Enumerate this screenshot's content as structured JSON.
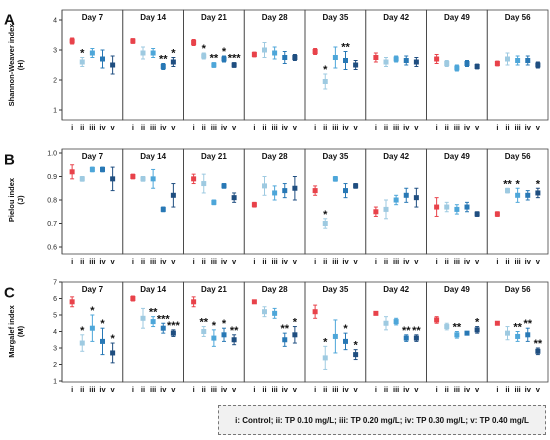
{
  "figure": {
    "legend_text": "i: Control; ii: TP 0.10 mg/L; iii: TP 0.20 mg/L; iv: TP 0.30 mg/L; v: TP 0.40 mg/L",
    "x_categories": [
      "i",
      "ii",
      "iii",
      "iv",
      "v"
    ],
    "days": [
      "Day 7",
      "Day 14",
      "Day 21",
      "Day 28",
      "Day 35",
      "Day 42",
      "Day 49",
      "Day 56"
    ],
    "colors": [
      "#e8424a",
      "#9ecae1",
      "#4da6d9",
      "#2878b5",
      "#1f4e80"
    ]
  },
  "chart_data": [
    {
      "type": "scatter",
      "panel": "A",
      "ylabel": "Shannon-Weaver index (H)",
      "ylim": [
        1,
        4
      ],
      "yticks": [
        1,
        2,
        3,
        4
      ],
      "days": [
        {
          "values": [
            3.3,
            2.6,
            2.9,
            2.7,
            2.5
          ],
          "errors": [
            0.1,
            0.15,
            0.15,
            0.3,
            0.3
          ],
          "stars": [
            "",
            "*",
            "",
            "",
            ""
          ]
        },
        {
          "values": [
            3.3,
            2.9,
            2.9,
            2.45,
            2.6
          ],
          "errors": [
            0.08,
            0.2,
            0.15,
            0.1,
            0.15
          ],
          "stars": [
            "",
            "",
            "",
            "**",
            "*"
          ]
        },
        {
          "values": [
            3.25,
            2.8,
            2.5,
            2.7,
            2.5
          ],
          "errors": [
            0.1,
            0.1,
            0.08,
            0.1,
            0.08
          ],
          "stars": [
            "",
            "*",
            "**",
            "*",
            "***"
          ]
        },
        {
          "values": [
            2.85,
            3.0,
            2.9,
            2.75,
            2.75
          ],
          "errors": [
            0.08,
            0.25,
            0.2,
            0.2,
            0.1
          ],
          "stars": [
            "",
            "",
            "",
            "",
            ""
          ]
        },
        {
          "values": [
            2.95,
            1.95,
            2.75,
            2.65,
            2.5
          ],
          "errors": [
            0.1,
            0.25,
            0.35,
            0.3,
            0.15
          ],
          "stars": [
            "",
            "*",
            "",
            "**",
            ""
          ]
        },
        {
          "values": [
            2.75,
            2.6,
            2.7,
            2.65,
            2.6
          ],
          "errors": [
            0.15,
            0.15,
            0.1,
            0.15,
            0.15
          ],
          "stars": [
            "",
            "",
            "",
            "",
            ""
          ]
        },
        {
          "values": [
            2.7,
            2.55,
            2.4,
            2.55,
            2.45
          ],
          "errors": [
            0.15,
            0.1,
            0.1,
            0.1,
            0.08
          ],
          "stars": [
            "",
            "",
            "",
            "",
            ""
          ]
        },
        {
          "values": [
            2.55,
            2.7,
            2.65,
            2.65,
            2.5
          ],
          "errors": [
            0.08,
            0.2,
            0.15,
            0.15,
            0.1
          ],
          "stars": [
            "",
            "",
            "",
            "",
            ""
          ]
        }
      ]
    },
    {
      "type": "scatter",
      "panel": "B",
      "ylabel": "Pielou index (J)",
      "ylim": [
        0.6,
        1.0
      ],
      "yticks": [
        0.6,
        0.7,
        0.8,
        0.9,
        1.0
      ],
      "days": [
        {
          "values": [
            0.92,
            0.89,
            0.93,
            0.93,
            0.89
          ],
          "errors": [
            0.03,
            0.01,
            0.01,
            0.01,
            0.05
          ],
          "stars": [
            "",
            "",
            "",
            "",
            ""
          ]
        },
        {
          "values": [
            0.9,
            0.89,
            0.89,
            0.76,
            0.82
          ],
          "errors": [
            0.01,
            0.01,
            0.04,
            0.01,
            0.05
          ],
          "stars": [
            "",
            "",
            "",
            "",
            ""
          ]
        },
        {
          "values": [
            0.89,
            0.87,
            0.79,
            0.86,
            0.81
          ],
          "errors": [
            0.02,
            0.04,
            0.01,
            0.01,
            0.02
          ],
          "stars": [
            "",
            "",
            "",
            "",
            ""
          ]
        },
        {
          "values": [
            0.78,
            0.86,
            0.83,
            0.84,
            0.85
          ],
          "errors": [
            0.01,
            0.04,
            0.03,
            0.03,
            0.05
          ],
          "stars": [
            "",
            "",
            "",
            "",
            ""
          ]
        },
        {
          "values": [
            0.84,
            0.7,
            0.89,
            0.84,
            0.86
          ],
          "errors": [
            0.02,
            0.02,
            0.01,
            0.03,
            0.01
          ],
          "stars": [
            "",
            "*",
            "",
            "",
            ""
          ]
        },
        {
          "values": [
            0.75,
            0.76,
            0.8,
            0.82,
            0.81
          ],
          "errors": [
            0.02,
            0.04,
            0.02,
            0.03,
            0.04
          ],
          "stars": [
            "",
            "",
            "",
            "",
            ""
          ]
        },
        {
          "values": [
            0.77,
            0.77,
            0.76,
            0.77,
            0.74
          ],
          "errors": [
            0.04,
            0.02,
            0.02,
            0.02,
            0.01
          ],
          "stars": [
            "",
            "",
            "",
            "",
            ""
          ]
        },
        {
          "values": [
            0.74,
            0.84,
            0.82,
            0.82,
            0.83
          ],
          "errors": [
            0.01,
            0.01,
            0.03,
            0.02,
            0.02
          ],
          "stars": [
            "",
            "**",
            "*",
            "",
            "*"
          ]
        }
      ]
    },
    {
      "type": "scatter",
      "panel": "C",
      "ylabel": "Margalef index (M)",
      "ylim": [
        1,
        7
      ],
      "yticks": [
        1,
        2,
        3,
        4,
        5,
        6,
        7
      ],
      "days": [
        {
          "values": [
            5.8,
            3.3,
            4.2,
            3.4,
            2.7
          ],
          "errors": [
            0.3,
            0.5,
            0.8,
            0.8,
            0.6
          ],
          "stars": [
            "",
            "*",
            "*",
            "*",
            "*"
          ]
        },
        {
          "values": [
            6.0,
            4.8,
            4.6,
            4.2,
            3.9
          ],
          "errors": [
            0.15,
            0.6,
            0.3,
            0.3,
            0.2
          ],
          "stars": [
            "",
            "",
            "**",
            "***",
            "***"
          ]
        },
        {
          "values": [
            5.8,
            4.0,
            3.6,
            3.8,
            3.5
          ],
          "errors": [
            0.3,
            0.3,
            0.5,
            0.4,
            0.3
          ],
          "stars": [
            "",
            "**",
            "*",
            "*",
            "**"
          ]
        },
        {
          "values": [
            5.8,
            5.2,
            5.1,
            3.5,
            3.8
          ],
          "errors": [
            0.1,
            0.3,
            0.3,
            0.4,
            0.5
          ],
          "stars": [
            "",
            "",
            "",
            "**",
            "*"
          ]
        },
        {
          "values": [
            5.2,
            2.4,
            3.7,
            3.4,
            2.6
          ],
          "errors": [
            0.4,
            0.7,
            1.0,
            0.5,
            0.3
          ],
          "stars": [
            "",
            "*",
            "",
            "*",
            "*"
          ]
        },
        {
          "values": [
            5.1,
            4.5,
            4.6,
            3.6,
            3.6
          ],
          "errors": [
            0.1,
            0.4,
            0.2,
            0.2,
            0.2
          ],
          "stars": [
            "",
            "",
            "",
            "**",
            "**"
          ]
        },
        {
          "values": [
            4.7,
            4.3,
            3.8,
            3.9,
            4.1
          ],
          "errors": [
            0.2,
            0.2,
            0.2,
            0.1,
            0.2
          ],
          "stars": [
            "",
            "",
            "**",
            "",
            "*"
          ]
        },
        {
          "values": [
            4.5,
            3.9,
            3.7,
            3.8,
            2.8
          ],
          "errors": [
            0.1,
            0.4,
            0.3,
            0.4,
            0.2
          ],
          "stars": [
            "",
            "",
            "**",
            "**",
            "**"
          ]
        }
      ]
    }
  ]
}
